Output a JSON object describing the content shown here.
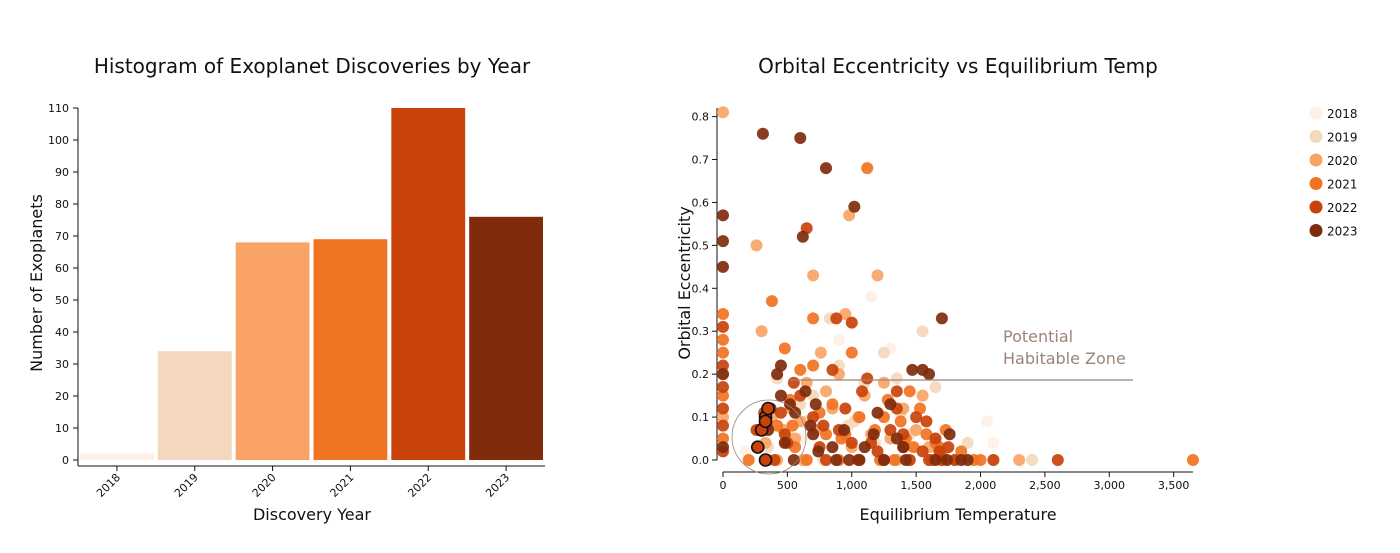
{
  "chart_data": [
    {
      "type": "bar",
      "title": "Histogram of Exoplanet Discoveries by Year",
      "xlabel": "Discovery Year",
      "ylabel": "Number of Exoplanets",
      "categories": [
        "2018",
        "2019",
        "2020",
        "2021",
        "2022",
        "2023"
      ],
      "values": [
        2,
        34,
        68,
        69,
        110,
        76
      ],
      "colors": [
        "#fdf0e6",
        "#f3d8bd",
        "#f9a466",
        "#f07322",
        "#c8420a",
        "#7f2b0c"
      ],
      "ylim": [
        0,
        110
      ],
      "yticks": [
        0,
        10,
        20,
        30,
        40,
        50,
        60,
        70,
        80,
        90,
        100,
        110
      ],
      "grid": false
    },
    {
      "type": "scatter",
      "title": "Orbital Eccentricity vs Equilibrium Temp",
      "xlabel": "Equilibrium Temperature",
      "ylabel": "Orbital Eccentricity",
      "xlim": [
        0,
        3650
      ],
      "ylim": [
        0,
        0.82
      ],
      "xticks": [
        0,
        500,
        1000,
        1500,
        2000,
        2500,
        3000,
        3500
      ],
      "xtick_labels": [
        "0",
        "500",
        "1,000",
        "1,500",
        "2,000",
        "2,500",
        "3,000",
        "3,500"
      ],
      "yticks": [
        0,
        0.1,
        0.2,
        0.3,
        0.4,
        0.5,
        0.6,
        0.7,
        0.8
      ],
      "ytick_labels": [
        "0.0",
        "0.1",
        "0.2",
        "0.3",
        "0.4",
        "0.5",
        "0.6",
        "0.7",
        "0.8"
      ],
      "legend_placement": "right",
      "annotation": {
        "lines": [
          "Potential",
          "Habitable Zone"
        ],
        "color": "#9b8579"
      },
      "series": [
        {
          "name": "2018",
          "color": "#fdf0e6",
          "points": [
            [
              180,
              0.02
            ],
            [
              1150,
              0.38
            ],
            [
              1300,
              0.26
            ],
            [
              2050,
              0.09
            ],
            [
              2100,
              0.04
            ],
            [
              900,
              0.28
            ],
            [
              620,
              0.05
            ]
          ]
        },
        {
          "name": "2019",
          "color": "#f3d8bd",
          "points": [
            [
              420,
              0.19
            ],
            [
              600,
              0.13
            ],
            [
              700,
              0.15
            ],
            [
              780,
              0.0
            ],
            [
              900,
              0.22
            ],
            [
              1100,
              0.18
            ],
            [
              1250,
              0.25
            ],
            [
              1350,
              0.19
            ],
            [
              1450,
              0.06
            ],
            [
              1550,
              0.3
            ],
            [
              1650,
              0.17
            ],
            [
              1900,
              0.04
            ],
            [
              2100,
              0.0
            ],
            [
              2400,
              0.0
            ],
            [
              500,
              0.06
            ],
            [
              350,
              0.03
            ],
            [
              650,
              0.09
            ],
            [
              1020,
              0.09
            ],
            [
              1180,
              0.04
            ],
            [
              830,
              0.33
            ],
            [
              970,
              0.08
            ],
            [
              1380,
              0.11
            ]
          ]
        },
        {
          "name": "2020",
          "color": "#f9a466",
          "points": [
            [
              0,
              0.81
            ],
            [
              260,
              0.5
            ],
            [
              300,
              0.3
            ],
            [
              420,
              0.0
            ],
            [
              470,
              0.07
            ],
            [
              530,
              0.12
            ],
            [
              560,
              0.05
            ],
            [
              600,
              0.09
            ],
            [
              650,
              0.18
            ],
            [
              700,
              0.43
            ],
            [
              760,
              0.25
            ],
            [
              800,
              0.16
            ],
            [
              850,
              0.12
            ],
            [
              900,
              0.2
            ],
            [
              950,
              0.34
            ],
            [
              980,
              0.57
            ],
            [
              1050,
              0.1
            ],
            [
              1100,
              0.15
            ],
            [
              1150,
              0.06
            ],
            [
              1200,
              0.43
            ],
            [
              1250,
              0.18
            ],
            [
              1300,
              0.05
            ],
            [
              1400,
              0.12
            ],
            [
              1450,
              0.0
            ],
            [
              1500,
              0.07
            ],
            [
              1600,
              0.03
            ],
            [
              1700,
              0.0
            ],
            [
              2300,
              0.0
            ],
            [
              0,
              0.2
            ],
            [
              0,
              0.1
            ],
            [
              330,
              0.04
            ],
            [
              380,
              0.1
            ],
            [
              620,
              0.0
            ],
            [
              720,
              0.07
            ],
            [
              1000,
              0.03
            ],
            [
              1350,
              0.0
            ],
            [
              1550,
              0.15
            ]
          ]
        },
        {
          "name": "2021",
          "color": "#f07322",
          "points": [
            [
              0,
              0.34
            ],
            [
              0,
              0.25
            ],
            [
              0,
              0.15
            ],
            [
              0,
              0.05
            ],
            [
              200,
              0.0
            ],
            [
              350,
              0.0
            ],
            [
              420,
              0.08
            ],
            [
              480,
              0.26
            ],
            [
              520,
              0.14
            ],
            [
              560,
              0.03
            ],
            [
              600,
              0.21
            ],
            [
              650,
              0.0
            ],
            [
              700,
              0.33
            ],
            [
              750,
              0.11
            ],
            [
              800,
              0.06
            ],
            [
              850,
              0.13
            ],
            [
              900,
              0.0
            ],
            [
              950,
              0.06
            ],
            [
              1000,
              0.25
            ],
            [
              1060,
              0.1
            ],
            [
              1120,
              0.68
            ],
            [
              1180,
              0.07
            ],
            [
              1220,
              0.0
            ],
            [
              1280,
              0.14
            ],
            [
              1330,
              0.0
            ],
            [
              1380,
              0.09
            ],
            [
              1420,
              0.05
            ],
            [
              1480,
              0.03
            ],
            [
              1530,
              0.12
            ],
            [
              1580,
              0.06
            ],
            [
              1620,
              0.0
            ],
            [
              1680,
              0.03
            ],
            [
              1730,
              0.07
            ],
            [
              1800,
              0.0
            ],
            [
              1850,
              0.02
            ],
            [
              1950,
              0.0
            ],
            [
              2000,
              0.0
            ],
            [
              3650,
              0.0
            ],
            [
              0,
              0.28
            ],
            [
              380,
              0.37
            ],
            [
              700,
              0.22
            ],
            [
              920,
              0.05
            ],
            [
              1250,
              0.1
            ],
            [
              1450,
              0.16
            ],
            [
              1700,
              0.01
            ],
            [
              540,
              0.08
            ],
            [
              1050,
              0.0
            ],
            [
              1650,
              0.04
            ]
          ]
        },
        {
          "name": "2022",
          "color": "#c8420a",
          "points": [
            [
              0,
              0.31
            ],
            [
              0,
              0.22
            ],
            [
              0,
              0.12
            ],
            [
              0,
              0.08
            ],
            [
              0,
              0.02
            ],
            [
              260,
              0.07
            ],
            [
              320,
              0.11
            ],
            [
              340,
              0.08
            ],
            [
              400,
              0.0
            ],
            [
              450,
              0.11
            ],
            [
              500,
              0.04
            ],
            [
              550,
              0.18
            ],
            [
              600,
              0.15
            ],
            [
              650,
              0.54
            ],
            [
              700,
              0.1
            ],
            [
              750,
              0.03
            ],
            [
              800,
              0.0
            ],
            [
              850,
              0.21
            ],
            [
              900,
              0.07
            ],
            [
              950,
              0.12
            ],
            [
              1000,
              0.32
            ],
            [
              1050,
              0.0
            ],
            [
              1080,
              0.16
            ],
            [
              1150,
              0.04
            ],
            [
              1200,
              0.02
            ],
            [
              1250,
              0.0
            ],
            [
              1300,
              0.07
            ],
            [
              1350,
              0.16
            ],
            [
              1400,
              0.03
            ],
            [
              1450,
              0.0
            ],
            [
              1500,
              0.1
            ],
            [
              1550,
              0.02
            ],
            [
              1600,
              0.0
            ],
            [
              1650,
              0.05
            ],
            [
              1700,
              0.0
            ],
            [
              1750,
              0.03
            ],
            [
              1800,
              0.0
            ],
            [
              2100,
              0.0
            ],
            [
              2600,
              0.0
            ],
            [
              0,
              0.17
            ],
            [
              480,
              0.06
            ],
            [
              880,
              0.33
            ],
            [
              1120,
              0.19
            ],
            [
              1350,
              0.12
            ],
            [
              1580,
              0.09
            ],
            [
              780,
              0.08
            ],
            [
              1000,
              0.04
            ],
            [
              1400,
              0.06
            ],
            [
              1680,
              0.02
            ]
          ]
        },
        {
          "name": "2023",
          "color": "#7f2b0c",
          "points": [
            [
              0,
              0.57
            ],
            [
              0,
              0.51
            ],
            [
              0,
              0.45
            ],
            [
              0,
              0.2
            ],
            [
              0,
              0.03
            ],
            [
              310,
              0.76
            ],
            [
              330,
              0.0
            ],
            [
              350,
              0.07
            ],
            [
              370,
              0.12
            ],
            [
              420,
              0.2
            ],
            [
              450,
              0.15
            ],
            [
              480,
              0.04
            ],
            [
              520,
              0.13
            ],
            [
              550,
              0.0
            ],
            [
              600,
              0.75
            ],
            [
              620,
              0.52
            ],
            [
              640,
              0.16
            ],
            [
              680,
              0.08
            ],
            [
              700,
              0.06
            ],
            [
              740,
              0.02
            ],
            [
              800,
              0.68
            ],
            [
              850,
              0.03
            ],
            [
              880,
              0.0
            ],
            [
              940,
              0.07
            ],
            [
              1020,
              0.59
            ],
            [
              1060,
              0.0
            ],
            [
              1100,
              0.03
            ],
            [
              1170,
              0.06
            ],
            [
              1250,
              0.0
            ],
            [
              1300,
              0.13
            ],
            [
              1350,
              0.05
            ],
            [
              1400,
              0.03
            ],
            [
              1470,
              0.21
            ],
            [
              1550,
              0.21
            ],
            [
              1600,
              0.2
            ],
            [
              1650,
              0.0
            ],
            [
              1700,
              0.33
            ],
            [
              1760,
              0.06
            ],
            [
              1850,
              0.0
            ],
            [
              1900,
              0.0
            ],
            [
              450,
              0.22
            ],
            [
              720,
              0.13
            ],
            [
              980,
              0.0
            ],
            [
              1200,
              0.11
            ],
            [
              1420,
              0.0
            ],
            [
              1740,
              0.0
            ],
            [
              560,
              0.11
            ]
          ]
        }
      ],
      "highlighted_points": [
        [
          270,
          0.03
        ],
        [
          300,
          0.07
        ],
        [
          330,
          0.1
        ],
        [
          350,
          0.12
        ],
        [
          330,
          0.0
        ],
        [
          330,
          0.09
        ]
      ]
    }
  ]
}
